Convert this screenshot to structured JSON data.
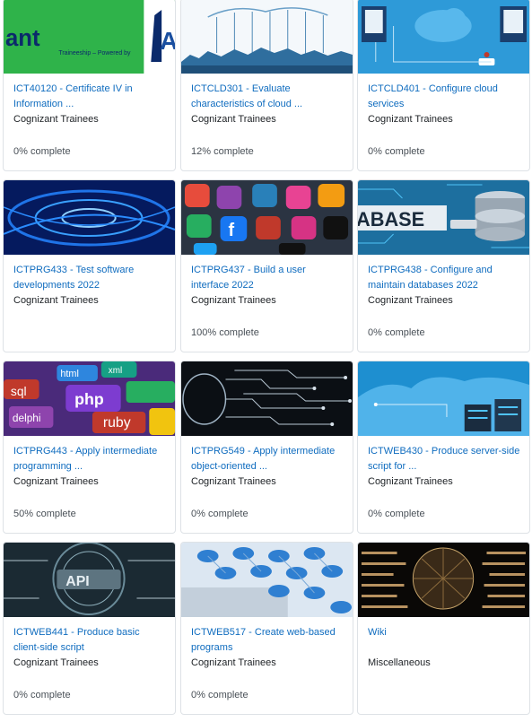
{
  "courses": [
    {
      "title": "ICT40120 - Certificate IV in Information ...",
      "category": "Cognizant Trainees",
      "progress": "0% complete",
      "image_text": "ant",
      "image_subtext": "Traineeship – Powered by"
    },
    {
      "title": "ICTCLD301 - Evaluate characteristics of cloud ...",
      "category": "Cognizant Trainees",
      "progress": "12% complete"
    },
    {
      "title": "ICTCLD401 - Configure cloud services",
      "category": "Cognizant Trainees",
      "progress": "0% complete"
    },
    {
      "title": "ICTPRG433 - Test software developments 2022",
      "category": "Cognizant Trainees",
      "progress": ""
    },
    {
      "title": "ICTPRG437 - Build a user interface 2022",
      "category": "Cognizant Trainees",
      "progress": "100% complete"
    },
    {
      "title": "ICTPRG438 - Configure and maintain databases 2022",
      "category": "Cognizant Trainees",
      "progress": "0% complete",
      "image_text": "ABASE"
    },
    {
      "title": "ICTPRG443 - Apply intermediate programming ...",
      "category": "Cognizant Trainees",
      "progress": "50% complete",
      "image_words": [
        "sql",
        "php",
        "ruby",
        "delphi",
        "html",
        "xml"
      ]
    },
    {
      "title": "ICTPRG549 - Apply intermediate object-oriented ...",
      "category": "Cognizant Trainees",
      "progress": "0% complete"
    },
    {
      "title": "ICTWEB430 - Produce server-side script for ...",
      "category": "Cognizant Trainees",
      "progress": "0% complete"
    },
    {
      "title": "ICTWEB441 - Produce basic client-side script",
      "category": "Cognizant Trainees",
      "progress": "0% complete",
      "image_text": "API"
    },
    {
      "title": "ICTWEB517 - Create web-based programs",
      "category": "Cognizant Trainees",
      "progress": "0% complete"
    },
    {
      "title": "Wiki",
      "category": "Miscellaneous",
      "progress": ""
    }
  ],
  "colors": {
    "link": "#0f6cbf",
    "text": "#1d2125",
    "muted": "#495057",
    "border": "#dee2e6"
  }
}
